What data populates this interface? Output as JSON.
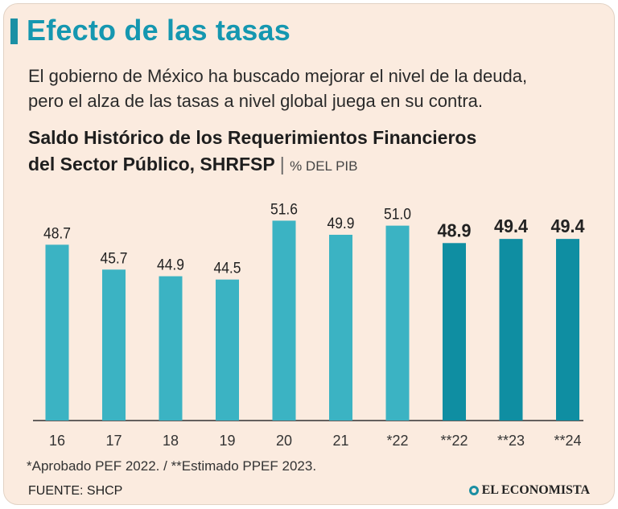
{
  "header": {
    "title": "Efecto de las tasas",
    "subtitle_line1": "El gobierno de México ha buscado mejorar el nivel de la deuda,",
    "subtitle_line2": "pero el alza de las tasas a nivel global juega en su contra."
  },
  "colors": {
    "accent": "#1597b0",
    "bar_historic": "#3bb3c3",
    "bar_estimated": "#0f8ea2",
    "background": "#fbebdf"
  },
  "chart_data": {
    "type": "bar",
    "title_line1": "Saldo Histórico de los Requerimientos Financieros",
    "title_line2": "del Sector Público, SHRFSP",
    "unit": "% DEL PIB",
    "categories": [
      "16",
      "17",
      "18",
      "19",
      "20",
      "21",
      "*22",
      "**22",
      "**23",
      "**24"
    ],
    "values": [
      48.7,
      45.7,
      44.9,
      44.5,
      51.6,
      49.9,
      51.0,
      48.9,
      49.4,
      49.4
    ],
    "value_labels": [
      "48.7",
      "45.7",
      "44.9",
      "44.5",
      "51.6",
      "49.9",
      "51.0",
      "48.9",
      "49.4",
      "49.4"
    ],
    "estimated": [
      false,
      false,
      false,
      false,
      false,
      false,
      false,
      true,
      true,
      true
    ],
    "ylim": [
      27.5,
      53
    ],
    "grid": false,
    "legend": "none"
  },
  "footer": {
    "footnote": "*Aprobado PEF 2022. / **Estimado PPEF 2023.",
    "source": "FUENTE: SHCP",
    "brand": "EL ECONOMISTA"
  }
}
